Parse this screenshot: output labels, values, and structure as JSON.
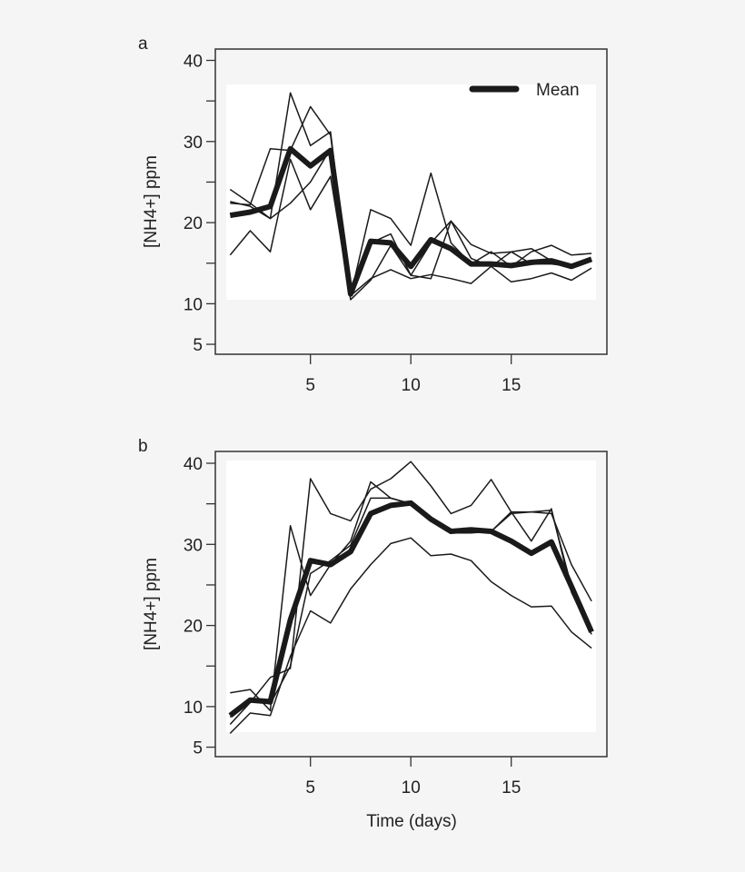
{
  "colors": {
    "background": "#f5f5f5",
    "plot_inner": "#ffffff",
    "line": "#1a1a1a"
  },
  "chart_data": [
    {
      "panel_label": "a",
      "type": "line",
      "xlabel": "",
      "ylabel": "[NH4+] ppm",
      "xlim": [
        1,
        19
      ],
      "ylim": [
        5,
        40
      ],
      "x_ticks": [
        5,
        10,
        15
      ],
      "y_ticks": [
        5,
        10,
        15,
        20,
        25,
        30,
        35,
        40
      ],
      "y_tick_labels": [
        "5",
        "10",
        "",
        "20",
        "",
        "30",
        "",
        "40"
      ],
      "legend": {
        "entries": [
          "Mean"
        ],
        "placement": "top-right"
      },
      "grid": false,
      "x": [
        1,
        2,
        3,
        4,
        5,
        6,
        7,
        8,
        9,
        10,
        11,
        12,
        13,
        14,
        15,
        16,
        17,
        18,
        19
      ],
      "series": [
        {
          "values": [
            24.1,
            22.4,
            20.5,
            36.0,
            29.5,
            31.2,
            11.0,
            13.1,
            14.2,
            13.1,
            13.6,
            13.1,
            12.5,
            14.6,
            12.7,
            13.1,
            13.8,
            12.9,
            14.4
          ]
        },
        {
          "values": [
            22.4,
            22.2,
            29.1,
            28.9,
            34.3,
            30.8,
            11.0,
            21.6,
            20.5,
            17.2,
            26.1,
            17.5,
            14.9,
            16.4,
            14.6,
            16.4,
            17.2,
            16.0,
            16.2
          ]
        },
        {
          "values": [
            16.0,
            19.0,
            16.4,
            27.8,
            21.6,
            25.7,
            10.5,
            12.9,
            17.2,
            13.5,
            17.5,
            20.2,
            15.6,
            14.6,
            16.4,
            16.8,
            15.3,
            14.6,
            15.3
          ]
        },
        {
          "values": [
            22.6,
            22.0,
            20.5,
            22.4,
            25.0,
            29.1,
            11.0,
            17.5,
            18.6,
            13.5,
            13.1,
            20.2,
            17.3,
            16.2,
            16.4,
            14.9,
            14.9,
            14.6,
            15.3
          ]
        },
        {
          "name": "Mean",
          "mean": true,
          "values": [
            20.9,
            21.3,
            22.0,
            29.1,
            27.0,
            28.9,
            11.2,
            17.7,
            17.5,
            14.6,
            17.9,
            16.8,
            14.9,
            14.9,
            14.7,
            15.1,
            15.3,
            14.6,
            15.5
          ]
        }
      ]
    },
    {
      "panel_label": "b",
      "type": "line",
      "xlabel": "Time (days)",
      "ylabel": "[NH4+] ppm",
      "xlim": [
        1,
        19
      ],
      "ylim": [
        5,
        40
      ],
      "x_ticks": [
        5,
        10,
        15
      ],
      "y_ticks": [
        5,
        10,
        15,
        20,
        25,
        30,
        35,
        40
      ],
      "y_tick_labels": [
        "5",
        "10",
        "",
        "20",
        "",
        "30",
        "",
        "40"
      ],
      "grid": false,
      "x": [
        1,
        2,
        3,
        4,
        5,
        6,
        7,
        8,
        9,
        10,
        11,
        12,
        13,
        14,
        15,
        16,
        17,
        18,
        19
      ],
      "series": [
        {
          "values": [
            7.8,
            10.5,
            13.6,
            14.7,
            38.1,
            33.8,
            32.9,
            36.8,
            38.1,
            40.2,
            37.2,
            33.8,
            34.8,
            38.0,
            34.0,
            34.0,
            33.8,
            27.5,
            23.0
          ]
        },
        {
          "values": [
            11.7,
            12.1,
            9.5,
            32.3,
            23.7,
            27.5,
            30.4,
            37.7,
            35.7,
            35.0,
            33.1,
            31.4,
            31.6,
            31.6,
            34.0,
            30.4,
            34.4,
            24.1,
            18.9
          ]
        },
        {
          "values": [
            6.7,
            9.2,
            8.9,
            16.2,
            21.8,
            20.3,
            24.5,
            27.5,
            30.1,
            30.8,
            28.6,
            28.8,
            28.0,
            25.4,
            23.7,
            22.3,
            22.4,
            19.2,
            17.2
          ]
        },
        {
          "values": [
            8.7,
            11.0,
            10.3,
            15.0,
            26.4,
            28.0,
            29.9,
            35.7,
            35.7,
            35.0,
            33.1,
            31.4,
            31.4,
            31.6,
            33.8,
            34.0,
            34.2,
            24.8,
            19.5
          ]
        },
        {
          "name": "Mean",
          "mean": true,
          "values": [
            8.9,
            10.8,
            10.6,
            20.7,
            28.0,
            27.5,
            29.1,
            33.8,
            34.8,
            35.1,
            33.1,
            31.6,
            31.8,
            31.6,
            30.4,
            28.9,
            30.3,
            24.8,
            19.2
          ]
        }
      ]
    }
  ]
}
